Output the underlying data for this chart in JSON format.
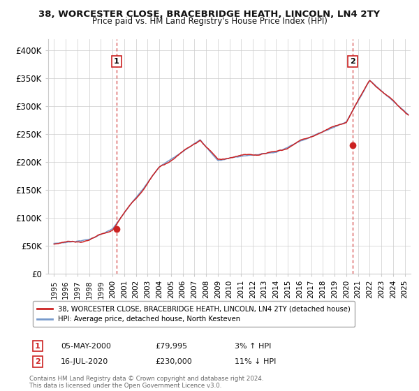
{
  "title": "38, WORCESTER CLOSE, BRACEBRIDGE HEATH, LINCOLN, LN4 2TY",
  "subtitle": "Price paid vs. HM Land Registry's House Price Index (HPI)",
  "ylabel_ticks": [
    "£0",
    "£50K",
    "£100K",
    "£150K",
    "£200K",
    "£250K",
    "£300K",
    "£350K",
    "£400K"
  ],
  "ytick_values": [
    0,
    50000,
    100000,
    150000,
    200000,
    250000,
    300000,
    350000,
    400000
  ],
  "ylim": [
    0,
    420000
  ],
  "xlim_start": 1994.5,
  "xlim_end": 2025.5,
  "xtick_years": [
    1995,
    1996,
    1997,
    1998,
    1999,
    2000,
    2001,
    2002,
    2003,
    2004,
    2005,
    2006,
    2007,
    2008,
    2009,
    2010,
    2011,
    2012,
    2013,
    2014,
    2015,
    2016,
    2017,
    2018,
    2019,
    2020,
    2021,
    2022,
    2023,
    2024,
    2025
  ],
  "hpi_color": "#7799cc",
  "price_color": "#cc2222",
  "annotation_color": "#cc2222",
  "bg_color": "#ffffff",
  "grid_color": "#cccccc",
  "sale1_x": 2000.35,
  "sale1_y": 79995,
  "sale1_label": "1",
  "sale1_date": "05-MAY-2000",
  "sale1_price": "£79,995",
  "sale1_hpi": "3% ↑ HPI",
  "sale2_x": 2020.54,
  "sale2_y": 230000,
  "sale2_label": "2",
  "sale2_date": "16-JUL-2020",
  "sale2_price": "£230,000",
  "sale2_hpi": "11% ↓ HPI",
  "legend_line1": "38, WORCESTER CLOSE, BRACEBRIDGE HEATH, LINCOLN, LN4 2TY (detached house)",
  "legend_line2": "HPI: Average price, detached house, North Kesteven",
  "footer": "Contains HM Land Registry data © Crown copyright and database right 2024.\nThis data is licensed under the Open Government Licence v3.0."
}
